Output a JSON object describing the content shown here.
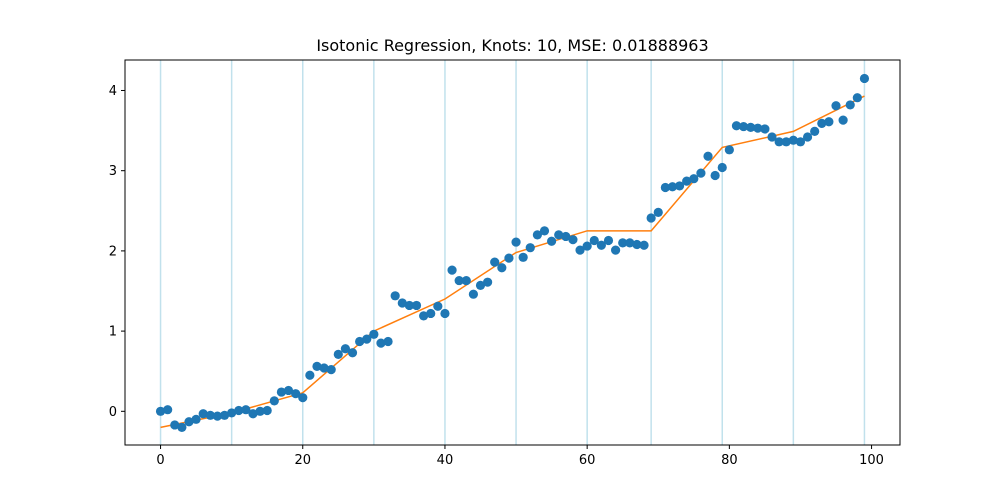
{
  "chart_data": {
    "type": "scatter",
    "title": "Isotonic Regression, Knots: 10, MSE: 0.01888963",
    "xlabel": "",
    "ylabel": "",
    "xlim": [
      -5,
      104
    ],
    "ylim": [
      -0.42,
      4.38
    ],
    "xticks": [
      0,
      20,
      40,
      60,
      80,
      100
    ],
    "yticks": [
      0,
      1,
      2,
      3,
      4
    ],
    "grid": false,
    "legend": "none",
    "knots": [
      0,
      10,
      20,
      30,
      40,
      50,
      60,
      69,
      79,
      89,
      99
    ],
    "series": [
      {
        "type": "scatter",
        "color": "#1f77b4",
        "x": [
          0,
          1,
          2,
          3,
          4,
          5,
          6,
          7,
          8,
          9,
          10,
          11,
          12,
          13,
          14,
          15,
          16,
          17,
          18,
          19,
          20,
          21,
          22,
          23,
          24,
          25,
          26,
          27,
          28,
          29,
          30,
          31,
          32,
          33,
          34,
          35,
          36,
          37,
          38,
          39,
          40,
          41,
          42,
          43,
          44,
          45,
          46,
          47,
          48,
          49,
          50,
          51,
          52,
          53,
          54,
          55,
          56,
          57,
          58,
          59,
          60,
          61,
          62,
          63,
          64,
          65,
          66,
          67,
          68,
          69,
          70,
          71,
          72,
          73,
          74,
          75,
          76,
          77,
          78,
          79,
          80,
          81,
          82,
          83,
          84,
          85,
          86,
          87,
          88,
          89,
          90,
          91,
          92,
          93,
          94,
          95,
          96,
          97,
          98,
          99
        ],
        "y": [
          0.0,
          0.02,
          -0.17,
          -0.2,
          -0.13,
          -0.1,
          -0.03,
          -0.05,
          -0.06,
          -0.05,
          -0.02,
          0.01,
          0.02,
          -0.03,
          0.0,
          0.01,
          0.13,
          0.24,
          0.26,
          0.22,
          0.17,
          0.45,
          0.56,
          0.54,
          0.52,
          0.71,
          0.78,
          0.73,
          0.87,
          0.9,
          0.96,
          0.85,
          0.87,
          1.44,
          1.35,
          1.32,
          1.32,
          1.19,
          1.22,
          1.31,
          1.22,
          1.76,
          1.63,
          1.63,
          1.46,
          1.57,
          1.61,
          1.86,
          1.79,
          1.91,
          2.11,
          1.92,
          2.04,
          2.2,
          2.25,
          2.12,
          2.2,
          2.18,
          2.14,
          2.01,
          2.06,
          2.13,
          2.07,
          2.13,
          2.01,
          2.1,
          2.1,
          2.08,
          2.07,
          2.41,
          2.48,
          2.79,
          2.8,
          2.81,
          2.87,
          2.9,
          2.97,
          3.18,
          2.94,
          3.04,
          3.26,
          3.56,
          3.55,
          3.54,
          3.53,
          3.52,
          3.42,
          3.36,
          3.36,
          3.38,
          3.36,
          3.42,
          3.49,
          3.59,
          3.61,
          3.81,
          3.63,
          3.82,
          3.91,
          4.15
        ]
      },
      {
        "type": "line",
        "color": "#ff7f0e",
        "x": [
          0,
          10,
          20,
          30,
          40,
          50,
          60,
          69,
          79,
          89,
          99
        ],
        "y": [
          -0.2,
          -0.02,
          0.23,
          1.0,
          1.4,
          1.98,
          2.25,
          2.25,
          3.29,
          3.49,
          3.93
        ]
      }
    ]
  },
  "colors": {
    "knot_line": "#add8e6",
    "axis": "#000000"
  }
}
